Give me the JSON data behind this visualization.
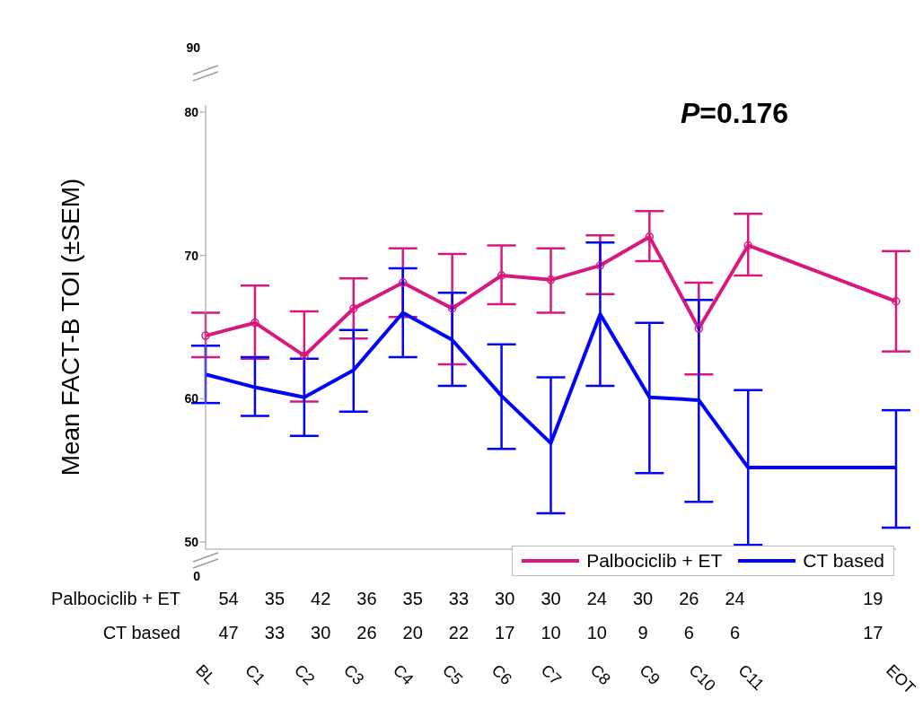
{
  "chart_data": {
    "type": "line",
    "ylabel": "Mean FACT-B TOI (±SEM)",
    "categories": [
      "BL",
      "C1",
      "C2",
      "C3",
      "C4",
      "C5",
      "C6",
      "C7",
      "C8",
      "C9",
      "C10",
      "C11",
      null,
      null,
      "EOT"
    ],
    "series": [
      {
        "name": "Palbociclib + ET",
        "color": "#d9187f",
        "marker": "circle",
        "values": [
          64.4,
          65.3,
          63.0,
          66.3,
          68.1,
          66.3,
          68.6,
          68.3,
          69.3,
          71.3,
          64.9,
          70.7,
          null,
          null,
          66.8
        ],
        "errors": [
          [
            62.9,
            66.0
          ],
          [
            62.8,
            67.9
          ],
          [
            59.8,
            66.1
          ],
          [
            64.2,
            68.4
          ],
          [
            65.7,
            70.5
          ],
          [
            62.4,
            70.1
          ],
          [
            66.6,
            70.7
          ],
          [
            66.0,
            70.5
          ],
          [
            67.3,
            71.4
          ],
          [
            69.6,
            73.1
          ],
          [
            61.7,
            68.1
          ],
          [
            68.6,
            72.9
          ],
          null,
          null,
          [
            63.3,
            70.3
          ]
        ]
      },
      {
        "name": "CT based",
        "color": "#0000ff",
        "marker": "none",
        "values": [
          61.7,
          60.8,
          60.1,
          62.0,
          66.0,
          64.1,
          60.2,
          56.9,
          65.9,
          60.1,
          59.9,
          55.2,
          null,
          null,
          55.2
        ],
        "errors": [
          [
            59.7,
            63.7
          ],
          [
            58.8,
            62.9
          ],
          [
            57.4,
            62.8
          ],
          [
            59.1,
            64.8
          ],
          [
            62.9,
            69.1
          ],
          [
            60.9,
            67.4
          ],
          [
            56.5,
            63.8
          ],
          [
            52.0,
            61.5
          ],
          [
            60.9,
            70.9
          ],
          [
            54.8,
            65.3
          ],
          [
            52.8,
            66.9
          ],
          [
            49.8,
            60.6
          ],
          null,
          null,
          [
            51.0,
            59.2
          ]
        ]
      }
    ],
    "ylim": [
      49.5,
      80.5
    ],
    "yticks": [
      50,
      60,
      70,
      80
    ],
    "grid": false,
    "legend": "bottom right",
    "line_style": "solid",
    "annotations": [
      "P=0.176",
      "0",
      "90",
      "Palbociclib + ET",
      "54",
      "35",
      "42",
      "36",
      "35",
      "33",
      "30",
      "30",
      "24",
      "30",
      "26",
      "24",
      "19",
      "CT based",
      "47",
      "33",
      "30",
      "26",
      "20",
      "22",
      "17",
      "10",
      "10",
      "9",
      "6",
      "6",
      "17"
    ]
  }
}
